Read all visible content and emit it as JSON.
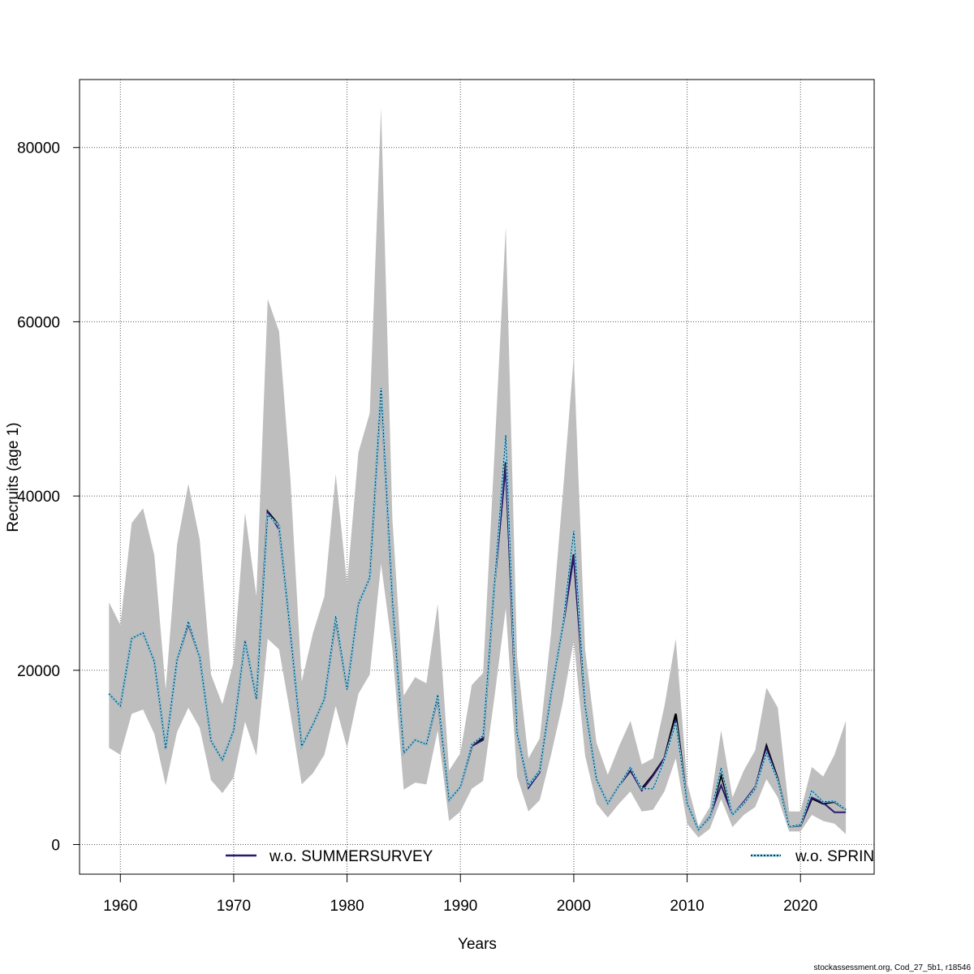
{
  "chart_data": {
    "type": "line",
    "title": "",
    "xlabel": "Years",
    "ylabel": "Recruits (age 1)",
    "xlim": [
      1956.4,
      2026.5
    ],
    "ylim": [
      -3400,
      87800
    ],
    "xticks": [
      1960,
      1970,
      1980,
      1990,
      2000,
      2010,
      2020
    ],
    "yticks": [
      0,
      20000,
      40000,
      60000,
      80000
    ],
    "grid": true,
    "legend_placement": "bottom",
    "x": [
      1959,
      1960,
      1961,
      1962,
      1963,
      1964,
      1965,
      1966,
      1967,
      1968,
      1969,
      1970,
      1971,
      1972,
      1973,
      1974,
      1975,
      1976,
      1977,
      1978,
      1979,
      1980,
      1981,
      1982,
      1983,
      1984,
      1985,
      1986,
      1987,
      1988,
      1989,
      1990,
      1991,
      1992,
      1993,
      1994,
      1995,
      1996,
      1997,
      1998,
      1999,
      2000,
      2001,
      2002,
      2003,
      2004,
      2005,
      2006,
      2007,
      2008,
      2009,
      2010,
      2011,
      2012,
      2013,
      2014,
      2015,
      2016,
      2017,
      2018,
      2019,
      2020,
      2021,
      2022,
      2023,
      2024
    ],
    "band": {
      "color": "#bebebe",
      "upper": [
        27800,
        25200,
        36900,
        38600,
        33200,
        17800,
        34400,
        41400,
        35000,
        19500,
        16100,
        21000,
        38100,
        28500,
        62600,
        58900,
        42000,
        18700,
        24300,
        28500,
        42500,
        29900,
        45000,
        49500,
        84600,
        37300,
        17100,
        19200,
        18500,
        27600,
        8500,
        10500,
        18300,
        19700,
        44800,
        70900,
        21500,
        9900,
        12200,
        24300,
        39700,
        56000,
        22400,
        11700,
        8000,
        11300,
        14200,
        9200,
        9900,
        15900,
        23600,
        7100,
        2100,
        4300,
        13100,
        5400,
        8500,
        10800,
        18000,
        15700,
        3800,
        3800,
        8900,
        7800,
        10300,
        14200
      ],
      "lower": [
        11100,
        10300,
        15000,
        15500,
        12700,
        6800,
        12900,
        15700,
        13400,
        7400,
        5900,
        7700,
        14100,
        10200,
        23600,
        22400,
        15000,
        6900,
        8200,
        10300,
        15900,
        11100,
        17300,
        19500,
        32200,
        22400,
        6300,
        7100,
        6900,
        13100,
        2700,
        3800,
        6400,
        7300,
        16900,
        27100,
        7800,
        3800,
        5100,
        10300,
        16100,
        23400,
        10200,
        4700,
        3100,
        4700,
        6100,
        3800,
        4000,
        6100,
        9900,
        2400,
        800,
        1800,
        5200,
        2000,
        3400,
        4300,
        7500,
        5400,
        1500,
        1500,
        3400,
        2700,
        2400,
        1200
      ]
    },
    "series": [
      {
        "color": "#000000",
        "values": [
          17300,
          15900,
          23650,
          24300,
          21000,
          11000,
          21200,
          25400,
          21500,
          11900,
          9700,
          13100,
          23400,
          16700,
          38200,
          36600,
          24300,
          11300,
          13800,
          16700,
          26000,
          17800,
          27600,
          30600,
          52200,
          28000,
          10500,
          12000,
          11500,
          17000,
          5100,
          6600,
          11300,
          12200,
          29900,
          43900,
          12700,
          6800,
          8500,
          17300,
          24800,
          33300,
          15900,
          7500,
          4700,
          6800,
          8500,
          6400,
          8000,
          9900,
          15000,
          4700,
          1700,
          3100,
          8000,
          3400,
          4700,
          6400,
          11300,
          7500,
          2050,
          2200,
          5300,
          4700,
          4900,
          4000
        ]
      },
      {
        "name": "w.o. SUMMERSURVEY",
        "color": "#2a1a6e",
        "values": [
          17300,
          15900,
          23650,
          24300,
          21000,
          11000,
          21200,
          25400,
          21500,
          11900,
          9700,
          13100,
          23400,
          16700,
          38200,
          36200,
          24300,
          11300,
          13800,
          16700,
          26000,
          17800,
          27600,
          30600,
          52200,
          28000,
          10500,
          12000,
          11500,
          17000,
          5100,
          6600,
          11300,
          12000,
          29900,
          43500,
          12700,
          6500,
          8300,
          17300,
          24800,
          33100,
          15900,
          7500,
          4700,
          6800,
          8500,
          6200,
          7900,
          9900,
          14300,
          4700,
          1700,
          3200,
          6800,
          3400,
          4900,
          6600,
          11000,
          7400,
          2050,
          2200,
          5400,
          4800,
          3700,
          3700
        ]
      },
      {
        "name": "w.o. SPRIN",
        "color": "#87ceeb",
        "dashed": true,
        "values": [
          17300,
          15900,
          23650,
          24300,
          21000,
          11000,
          21200,
          25600,
          21500,
          11900,
          9700,
          13100,
          23400,
          16700,
          37800,
          36600,
          24300,
          11300,
          13800,
          16700,
          26200,
          17800,
          27600,
          30600,
          52400,
          28000,
          10500,
          12000,
          11500,
          17200,
          5100,
          6600,
          11500,
          12500,
          29900,
          47000,
          12700,
          6800,
          8500,
          17300,
          24800,
          36000,
          15900,
          7500,
          4700,
          6800,
          8900,
          6400,
          6400,
          9700,
          14000,
          4700,
          1700,
          3100,
          8800,
          3400,
          4700,
          6400,
          10500,
          7300,
          2050,
          2300,
          6200,
          4900,
          5000,
          4000
        ]
      }
    ]
  },
  "footer": "stockassessment.org, Cod_27_5b1, r18546"
}
